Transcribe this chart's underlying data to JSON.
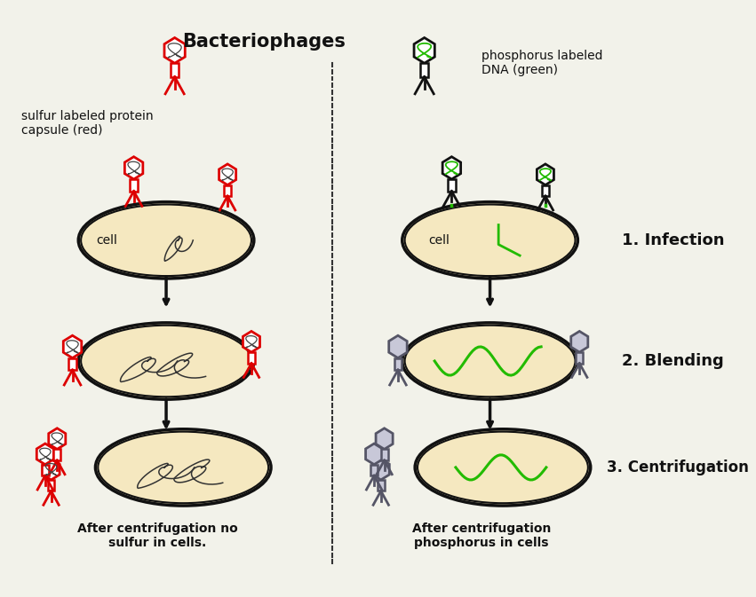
{
  "title": "Bacteriophages",
  "bg_color": "#f2f2ea",
  "red_color": "#dd0000",
  "green_color": "#22bb00",
  "black_color": "#111111",
  "gray_fill": "#c8c8d8",
  "cell_fill": "#f5e8c0",
  "cell_edge": "#111111",
  "label_sulfur": "sulfur labeled protein\ncapsule (red)",
  "label_phosphorus": "phosphorus labeled\nDNA (green)",
  "label_infection": "1. Infection",
  "label_blending": "2. Blending",
  "label_centrifugation": "3. Centrifugation",
  "label_after_left": "After centrifugation no\nsulfur in cells.",
  "label_after_right": "After centrifugation\nphosphorus in cells"
}
